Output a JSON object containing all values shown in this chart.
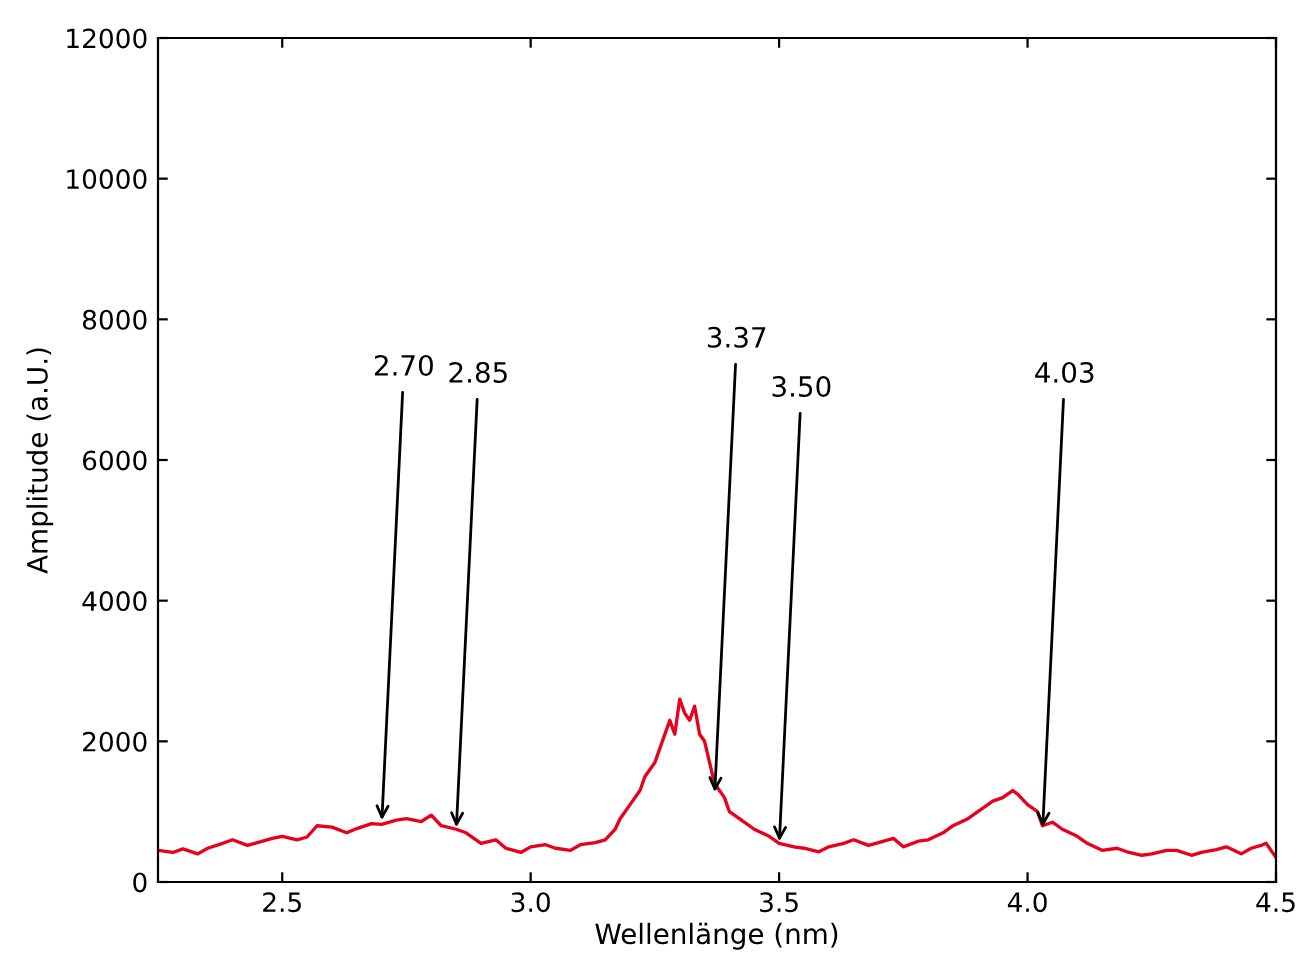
{
  "chart_data": {
    "type": "line",
    "xlabel": "Wellenlänge (nm)",
    "ylabel": "Amplitude (a.U.)",
    "x": [
      2.25,
      2.28,
      2.3,
      2.33,
      2.35,
      2.38,
      2.4,
      2.43,
      2.45,
      2.48,
      2.5,
      2.53,
      2.55,
      2.57,
      2.6,
      2.63,
      2.65,
      2.68,
      2.7,
      2.73,
      2.75,
      2.78,
      2.8,
      2.82,
      2.85,
      2.87,
      2.9,
      2.93,
      2.95,
      2.98,
      3.0,
      3.03,
      3.05,
      3.08,
      3.1,
      3.13,
      3.15,
      3.17,
      3.18,
      3.2,
      3.22,
      3.23,
      3.25,
      3.26,
      3.28,
      3.29,
      3.3,
      3.31,
      3.32,
      3.33,
      3.34,
      3.35,
      3.36,
      3.37,
      3.38,
      3.39,
      3.4,
      3.42,
      3.45,
      3.48,
      3.5,
      3.53,
      3.55,
      3.58,
      3.6,
      3.63,
      3.65,
      3.68,
      3.7,
      3.73,
      3.75,
      3.78,
      3.8,
      3.83,
      3.85,
      3.88,
      3.9,
      3.93,
      3.95,
      3.97,
      3.98,
      4.0,
      4.02,
      4.03,
      4.05,
      4.07,
      4.1,
      4.12,
      4.15,
      4.18,
      4.2,
      4.23,
      4.25,
      4.28,
      4.3,
      4.33,
      4.35,
      4.38,
      4.4,
      4.43,
      4.45,
      4.47,
      4.48,
      4.49,
      4.5
    ],
    "series": [
      {
        "color": "#e8001c",
        "values": [
          450,
          420,
          470,
          400,
          480,
          550,
          600,
          520,
          560,
          620,
          650,
          600,
          640,
          800,
          780,
          700,
          760,
          830,
          820,
          880,
          900,
          860,
          950,
          800,
          750,
          700,
          550,
          600,
          480,
          420,
          500,
          530,
          480,
          450,
          530,
          560,
          600,
          750,
          900,
          1100,
          1300,
          1500,
          1700,
          1900,
          2300,
          2100,
          2600,
          2400,
          2300,
          2500,
          2100,
          2000,
          1700,
          1400,
          1300,
          1200,
          1000,
          900,
          750,
          650,
          550,
          500,
          480,
          430,
          500,
          550,
          600,
          520,
          560,
          620,
          500,
          580,
          600,
          700,
          800,
          900,
          1000,
          1150,
          1200,
          1300,
          1250,
          1100,
          1000,
          800,
          850,
          750,
          650,
          550,
          450,
          480,
          430,
          380,
          400,
          450,
          450,
          380,
          420,
          460,
          500,
          400,
          480,
          520,
          550,
          450,
          350
        ]
      }
    ],
    "xlim": [
      2.25,
      4.5
    ],
    "xticks": [
      {
        "value": 2.5,
        "label": "2.5"
      },
      {
        "value": 3.0,
        "label": "3.0"
      },
      {
        "value": 3.5,
        "label": "3.5"
      },
      {
        "value": 4.0,
        "label": "4.0"
      },
      {
        "value": 4.5,
        "label": "4.5"
      }
    ],
    "ylim": [
      0,
      12000
    ],
    "yticks": [
      0,
      2000,
      4000,
      6000,
      8000,
      10000,
      12000
    ],
    "grid": false,
    "legend": false,
    "annotations": [
      {
        "text": "2.70",
        "x": 2.7,
        "y": 800
      },
      {
        "text": "2.85",
        "x": 2.85,
        "y": 700
      },
      {
        "text": "3.37",
        "x": 3.37,
        "y": 1200
      },
      {
        "text": "3.50",
        "x": 3.5,
        "y": 500
      },
      {
        "text": "4.03",
        "x": 4.03,
        "y": 700
      }
    ]
  }
}
